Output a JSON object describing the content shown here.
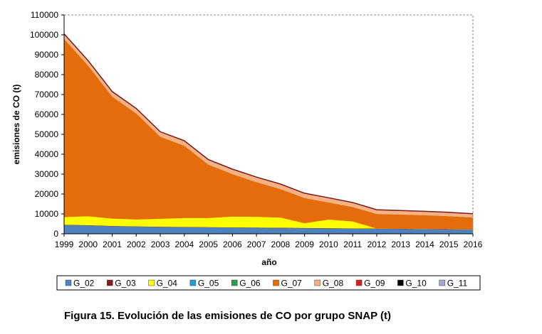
{
  "caption": "Figura 15. Evolución de las emisiones de CO por grupo SNAP (t)",
  "chart_data": {
    "type": "area",
    "stacked": true,
    "title": "",
    "xlabel": "año",
    "ylabel": "emisiones de CO (t)",
    "ylim": [
      0,
      110000
    ],
    "yticks": [
      0,
      10000,
      20000,
      30000,
      40000,
      50000,
      60000,
      70000,
      80000,
      90000,
      100000,
      110000
    ],
    "x": [
      1999,
      2000,
      2001,
      2002,
      2003,
      2004,
      2005,
      2006,
      2007,
      2008,
      2009,
      2010,
      2011,
      2012,
      2013,
      2014,
      2015,
      2016
    ],
    "grid": "dashed border only",
    "legend_position": "bottom",
    "series": [
      {
        "name": "G_02",
        "color": "#4f81bd",
        "values": [
          4500,
          4300,
          3900,
          3700,
          3500,
          3400,
          3300,
          3200,
          3100,
          3000,
          2900,
          2800,
          2700,
          2600,
          2500,
          2400,
          2300,
          2200
        ]
      },
      {
        "name": "G_03",
        "color": "#8b1a1a",
        "values": [
          100,
          100,
          100,
          100,
          100,
          100,
          100,
          100,
          100,
          100,
          100,
          100,
          100,
          100,
          100,
          100,
          100,
          100
        ]
      },
      {
        "name": "G_04",
        "color": "#ffff00",
        "values": [
          3900,
          4500,
          3700,
          3500,
          4000,
          4500,
          4600,
          5400,
          5400,
          5100,
          2400,
          4300,
          3500,
          0,
          0,
          0,
          0,
          0
        ]
      },
      {
        "name": "G_05",
        "color": "#1ea0d2",
        "values": [
          0,
          0,
          0,
          0,
          0,
          0,
          0,
          0,
          0,
          0,
          0,
          0,
          0,
          0,
          0,
          0,
          0,
          0
        ]
      },
      {
        "name": "G_06",
        "color": "#2e9e4a",
        "values": [
          0,
          0,
          0,
          0,
          0,
          0,
          0,
          0,
          0,
          0,
          0,
          0,
          0,
          0,
          0,
          0,
          0,
          0
        ]
      },
      {
        "name": "G_07",
        "color": "#e46c0a",
        "values": [
          89500,
          75600,
          61300,
          53200,
          41200,
          36300,
          26800,
          21300,
          17400,
          14300,
          12600,
          8600,
          7200,
          7300,
          7100,
          6900,
          6500,
          5900
        ]
      },
      {
        "name": "G_08",
        "color": "#f4b183",
        "values": [
          2500,
          2500,
          2500,
          2500,
          2500,
          2500,
          2500,
          2500,
          2500,
          2500,
          2400,
          2300,
          2200,
          2100,
          2000,
          1900,
          1900,
          1900
        ]
      },
      {
        "name": "G_09",
        "color": "#d81e1e",
        "values": [
          0,
          0,
          0,
          0,
          0,
          0,
          0,
          0,
          0,
          0,
          0,
          0,
          0,
          0,
          0,
          0,
          0,
          0
        ]
      },
      {
        "name": "G_10",
        "color": "#000000",
        "values": [
          0,
          0,
          0,
          0,
          0,
          0,
          0,
          0,
          0,
          0,
          0,
          0,
          0,
          0,
          0,
          0,
          0,
          0
        ]
      },
      {
        "name": "G_11",
        "color": "#a6a6d9",
        "values": [
          0,
          0,
          0,
          0,
          0,
          0,
          0,
          0,
          0,
          0,
          0,
          0,
          0,
          0,
          0,
          0,
          0,
          0
        ]
      }
    ]
  }
}
